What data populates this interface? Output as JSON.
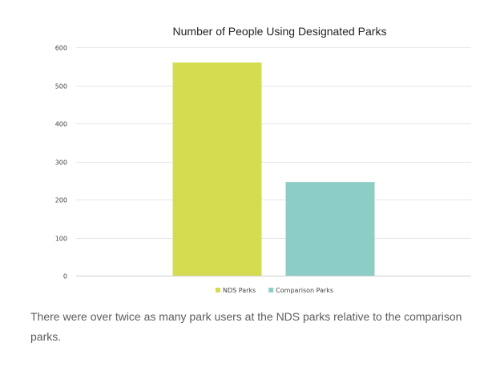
{
  "chart_data": {
    "type": "bar",
    "title": "Number of People Using Designated Parks",
    "xlabel": "",
    "ylabel": "",
    "categories": [
      "NDS Parks",
      "Comparison Parks"
    ],
    "values": [
      560,
      246
    ],
    "colors": [
      "#d4dd4f",
      "#8ccdc6"
    ],
    "ylim": [
      0,
      600
    ],
    "yticks": [
      0,
      100,
      200,
      300,
      400,
      500,
      600
    ],
    "grid": true,
    "legend": {
      "position": "bottom",
      "entries": [
        "NDS Parks",
        "Comparison Parks"
      ]
    }
  },
  "caption": "There were over twice as many park users at the NDS parks relative to the comparison parks."
}
